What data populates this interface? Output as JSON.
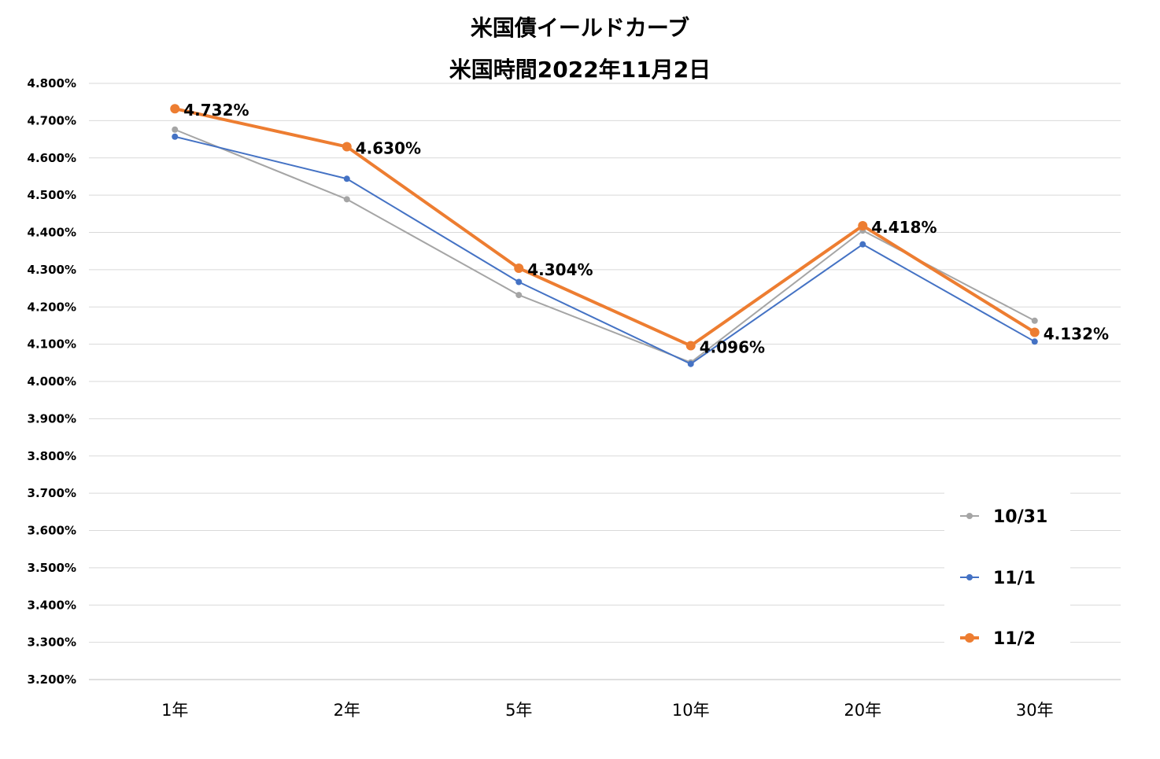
{
  "chart_data": {
    "type": "line",
    "title": "米国債イールドカーブ",
    "subtitle": "米国時間2022年11月2日",
    "categories": [
      "1年",
      "2年",
      "5年",
      "10年",
      "20年",
      "30年"
    ],
    "series": [
      {
        "name": "10/31",
        "color": "#a5a5a5",
        "values": [
          4.676,
          4.489,
          4.232,
          4.051,
          4.405,
          4.163
        ]
      },
      {
        "name": "11/1",
        "color": "#4472c4",
        "values": [
          4.657,
          4.544,
          4.267,
          4.047,
          4.368,
          4.107
        ]
      },
      {
        "name": "11/2",
        "color": "#ed7d31",
        "values": [
          4.732,
          4.63,
          4.304,
          4.096,
          4.418,
          4.132
        ],
        "data_labels": [
          "4.732%",
          "4.630%",
          "4.304%",
          "4.096%",
          "4.418%",
          "4.132%"
        ]
      }
    ],
    "ylim": [
      3.2,
      4.8
    ],
    "y_step": 0.1,
    "y_tick_labels": [
      "3.200%",
      "3.300%",
      "3.400%",
      "3.500%",
      "3.600%",
      "3.700%",
      "3.800%",
      "3.900%",
      "4.000%",
      "4.100%",
      "4.200%",
      "4.300%",
      "4.400%",
      "4.500%",
      "4.600%",
      "4.700%",
      "4.800%"
    ],
    "grid": true,
    "legend": "bottom-right",
    "xlabel": "",
    "ylabel": ""
  }
}
